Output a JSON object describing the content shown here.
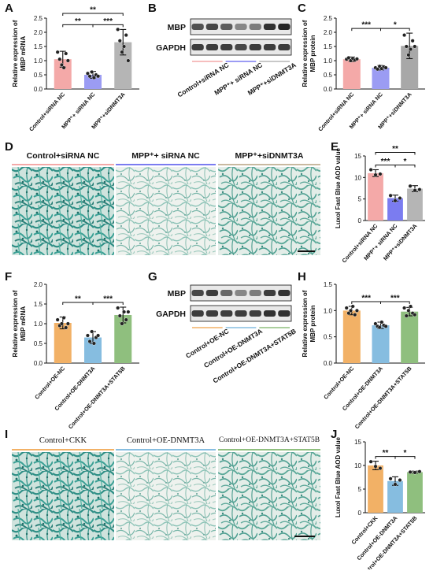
{
  "panels": {
    "A": "A",
    "B": "B",
    "C": "C",
    "D": "D",
    "E": "E",
    "F": "F",
    "G": "G",
    "H": "H",
    "I": "I",
    "J": "J"
  },
  "western_B": {
    "bands": [
      "MBP",
      "GAPDH"
    ],
    "lanes": [
      "Control+siRNA NC",
      "MPP⁺+ siRNA NC",
      "MPP⁺+siDNMT3A"
    ],
    "lane_colors": [
      "#f4a9a8",
      "#7b7cf0",
      "#b5b5b5"
    ]
  },
  "western_G": {
    "bands": [
      "MBP",
      "GAPDH"
    ],
    "lanes": [
      "Control+OE-NC",
      "Control+OE-DNMT3A",
      "Control+OE-DNMT3A+STAT5B"
    ],
    "lane_colors": [
      "#f2b166",
      "#86bde0",
      "#8fbf7e"
    ]
  },
  "micro_D": [
    {
      "title": "Control+siRNA NC",
      "color": "#f4a9a8"
    },
    {
      "title": "MPP⁺+ siRNA NC",
      "color": "#7b7cf0"
    },
    {
      "title": "MPP⁺+siDNMT3A",
      "color": "#c9b9a0"
    }
  ],
  "micro_I": [
    {
      "title": "Control+CKK",
      "color": "#f2b166"
    },
    {
      "title": "Control+OE-DNMT3A",
      "color": "#86bde0"
    },
    {
      "title": "Control+OE-DNMT3A+STAT5B",
      "color": "#8fbf7e"
    }
  ],
  "chart_data": [
    {
      "panel": "A",
      "type": "bar",
      "categories": [
        "Control+siRNA NC",
        "MPP⁺+ siRNA NC",
        "MPP⁺+siDNMT3A"
      ],
      "values": [
        1.05,
        0.5,
        1.65
      ],
      "errors": [
        0.28,
        0.12,
        0.45
      ],
      "points": [
        [
          1.3,
          1.05,
          0.85,
          0.75,
          1.25,
          1.0
        ],
        [
          0.55,
          0.45,
          0.6,
          0.4,
          0.5,
          0.45
        ],
        [
          2.1,
          1.7,
          1.3,
          1.5,
          1.9,
          1.0
        ]
      ],
      "colors": [
        "#f4a9a8",
        "#9b9cf3",
        "#b5b5b5"
      ],
      "ylabel": "Relative expression of MBP mRNA",
      "ylim": [
        0,
        2.5
      ],
      "yticks": [
        0,
        0.5,
        1.0,
        1.5,
        2.0,
        2.5
      ],
      "sig": [
        {
          "from": 0,
          "to": 1,
          "label": "**",
          "level": 0
        },
        {
          "from": 1,
          "to": 2,
          "label": "***",
          "level": 0
        },
        {
          "from": 0,
          "to": 2,
          "label": "**",
          "level": 1
        }
      ]
    },
    {
      "panel": "C",
      "type": "bar",
      "categories": [
        "Control+siRNA NC",
        "MPP⁺+ siRNA NC",
        "MPP⁺+siDNMT3A"
      ],
      "values": [
        1.05,
        0.75,
        1.52
      ],
      "errors": [
        0.08,
        0.08,
        0.45
      ],
      "points": [
        [
          1.05,
          1.1,
          1.0,
          1.08,
          1.02,
          1.06
        ],
        [
          0.75,
          0.7,
          0.8,
          0.72,
          0.78,
          0.75
        ],
        [
          1.9,
          1.5,
          1.2,
          1.4,
          1.7,
          1.5
        ]
      ],
      "colors": [
        "#f4a9a8",
        "#9b9cf3",
        "#a8a8a8"
      ],
      "ylabel": "Relative expression of MBP protein",
      "ylim": [
        0,
        2.5
      ],
      "yticks": [
        0,
        0.5,
        1.0,
        1.5,
        2.0,
        2.5
      ],
      "sig": [
        {
          "from": 0,
          "to": 1,
          "label": "***",
          "level": 0
        },
        {
          "from": 1,
          "to": 2,
          "label": "*",
          "level": 0
        }
      ]
    },
    {
      "panel": "E",
      "type": "bar",
      "categories": [
        "Control+siRNA NC",
        "MPP⁺+ siRNA NC",
        "MPP⁺+siDNMT3A"
      ],
      "values": [
        11.0,
        5.2,
        7.4
      ],
      "errors": [
        0.8,
        0.7,
        0.7
      ],
      "points": [
        [
          11.8,
          10.6,
          10.8
        ],
        [
          5.8,
          4.6,
          5.2
        ],
        [
          8.0,
          7.0,
          7.2
        ]
      ],
      "colors": [
        "#f4a9a8",
        "#7b7cf0",
        "#b5b5b5"
      ],
      "ylabel": "Luxol Fast Blue AOD value",
      "ylim": [
        0,
        15
      ],
      "yticks": [
        0,
        5,
        10,
        15
      ],
      "sig": [
        {
          "from": 0,
          "to": 1,
          "label": "***",
          "level": 0
        },
        {
          "from": 1,
          "to": 2,
          "label": "*",
          "level": 0
        },
        {
          "from": 0,
          "to": 2,
          "label": "**",
          "level": 1
        }
      ]
    },
    {
      "panel": "F",
      "type": "bar",
      "categories": [
        "Control+OE-NC",
        "Control+OE-DNMT3A",
        "Control+OE-DNMT3A+STAT5B"
      ],
      "values": [
        1.02,
        0.65,
        1.22
      ],
      "errors": [
        0.15,
        0.15,
        0.2
      ],
      "points": [
        [
          1.1,
          0.95,
          1.0,
          1.15,
          0.9,
          1.0
        ],
        [
          0.7,
          0.55,
          0.8,
          0.5,
          0.65,
          0.7
        ],
        [
          1.4,
          1.2,
          1.0,
          1.3,
          1.1,
          1.3
        ]
      ],
      "colors": [
        "#f2b166",
        "#86bde0",
        "#8fbf7e"
      ],
      "ylabel": "Relative expression of MBP mRNA",
      "ylim": [
        0,
        2.0
      ],
      "yticks": [
        0,
        0.5,
        1.0,
        1.5,
        2.0
      ],
      "sig": [
        {
          "from": 0,
          "to": 1,
          "label": "**",
          "level": 0
        },
        {
          "from": 1,
          "to": 2,
          "label": "***",
          "level": 0
        }
      ]
    },
    {
      "panel": "H",
      "type": "bar",
      "categories": [
        "Control+OE-NC",
        "Control+OE-DNMT3A",
        "Control+OE-DNMT3A+STAT5B"
      ],
      "values": [
        1.0,
        0.72,
        0.98
      ],
      "errors": [
        0.08,
        0.06,
        0.08
      ],
      "points": [
        [
          1.05,
          0.95,
          1.0,
          1.08,
          0.92,
          1.0
        ],
        [
          0.75,
          0.7,
          0.68,
          0.78,
          0.72,
          0.7
        ],
        [
          1.05,
          0.9,
          1.0,
          1.08,
          0.95,
          0.92
        ]
      ],
      "colors": [
        "#f2b166",
        "#86bde0",
        "#8fbf7e"
      ],
      "ylabel": "Relative expression of MBP protein",
      "ylim": [
        0,
        1.5
      ],
      "yticks": [
        0,
        0.5,
        1.0,
        1.5
      ],
      "sig": [
        {
          "from": 0,
          "to": 1,
          "label": "***",
          "level": 0
        },
        {
          "from": 1,
          "to": 2,
          "label": "***",
          "level": 0
        }
      ]
    },
    {
      "panel": "J",
      "type": "bar",
      "categories": [
        "Control+CKK",
        "Control+OE-DNMT3A",
        "Control+OE-DNMT3A+STAT5B"
      ],
      "values": [
        10.0,
        6.7,
        8.6
      ],
      "errors": [
        0.9,
        0.9,
        0.2
      ],
      "points": [
        [
          10.8,
          9.8,
          9.4
        ],
        [
          7.2,
          6.0,
          6.9
        ],
        [
          8.6,
          8.5,
          8.7
        ]
      ],
      "colors": [
        "#f2b166",
        "#86bde0",
        "#8fbf7e"
      ],
      "ylabel": "Luxol Fast Blue AOD value",
      "ylim": [
        0,
        15
      ],
      "yticks": [
        0,
        5,
        10,
        15
      ],
      "sig": [
        {
          "from": 0,
          "to": 1,
          "label": "**",
          "level": 0
        },
        {
          "from": 1,
          "to": 2,
          "label": "*",
          "level": 0
        }
      ]
    }
  ]
}
